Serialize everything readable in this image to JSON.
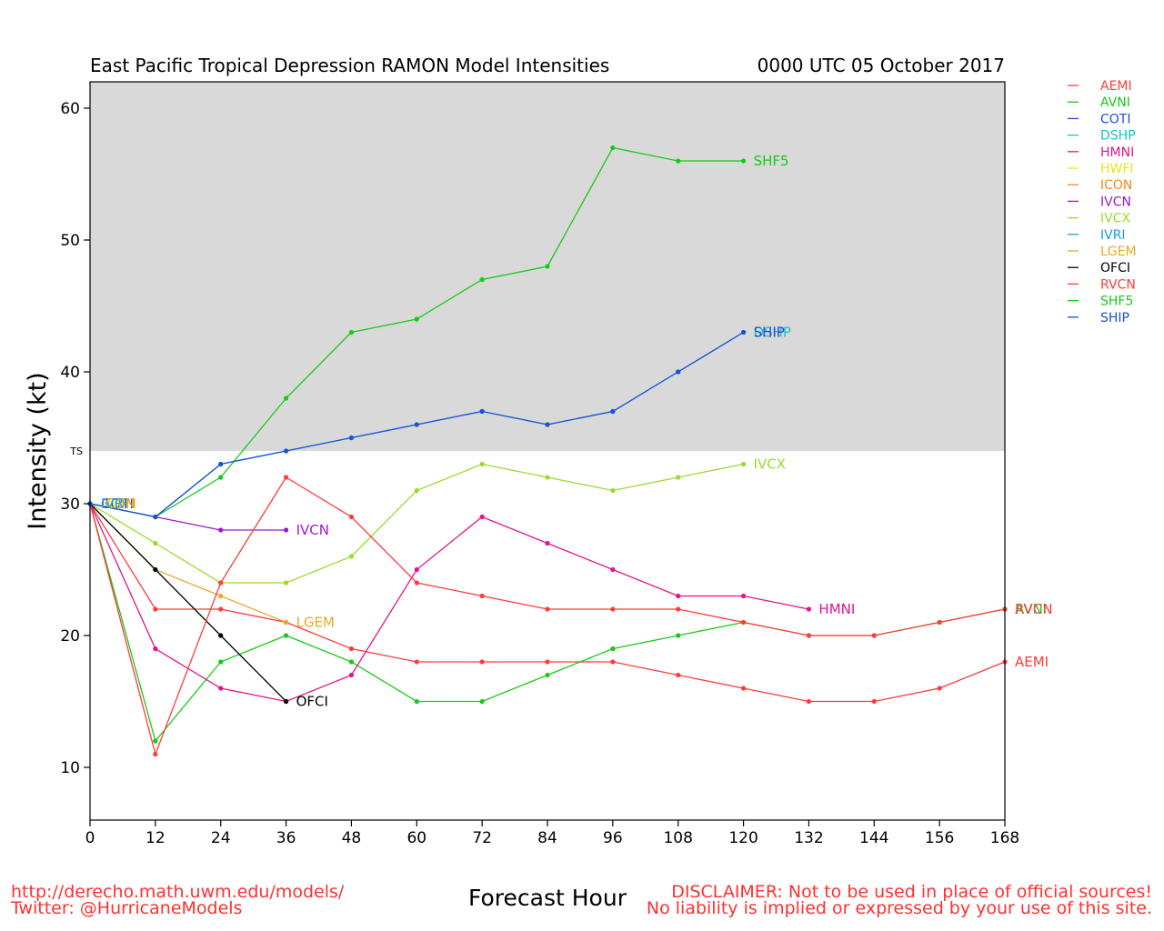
{
  "chart_data": {
    "type": "line",
    "title": "East Pacific Tropical Depression RAMON Model Intensities",
    "subtitle": "0000 UTC 05 October 2017",
    "xlabel": "Forecast Hour",
    "ylabel": "Intensity (kt)",
    "xlim": [
      0,
      168
    ],
    "ylim": [
      6,
      62
    ],
    "x_ticks": [
      0,
      12,
      24,
      36,
      48,
      60,
      72,
      84,
      96,
      108,
      120,
      132,
      144,
      156,
      168
    ],
    "y_ticks": [
      10,
      20,
      30,
      40,
      50,
      60
    ],
    "ts_threshold": 34,
    "ts_label": "TS",
    "shaded_above_ts_color": "#d9d9d9",
    "grid": false,
    "legend_position": "outside-right-top",
    "series": [
      {
        "name": "AEMI",
        "color": "#ff3b3b",
        "x": [
          0,
          12,
          24,
          36,
          48,
          60,
          72,
          84,
          96,
          108,
          120,
          132,
          144,
          156,
          168
        ],
        "values": [
          30,
          22,
          22,
          21,
          19,
          18,
          18,
          18,
          18,
          17,
          16,
          15,
          15,
          16,
          18
        ],
        "end_label": "AEMI"
      },
      {
        "name": "AVNI",
        "color": "#18c918",
        "x": [
          0,
          12,
          24,
          36,
          48,
          60,
          72,
          84,
          96,
          108,
          120,
          132,
          144,
          156,
          168
        ],
        "values": [
          30,
          12,
          18,
          20,
          18,
          15,
          15,
          17,
          19,
          20,
          21,
          20,
          20,
          21,
          22
        ],
        "end_label": "AVNI"
      },
      {
        "name": "COTI",
        "color": "#1d4fd9",
        "x": [
          0
        ],
        "values": [
          30
        ],
        "end_label": "COTI"
      },
      {
        "name": "DSHP",
        "color": "#19c1c1",
        "x": [
          0,
          12,
          24,
          36,
          48,
          60,
          72,
          84,
          96,
          108,
          120
        ],
        "values": [
          30,
          29,
          33,
          34,
          35,
          36,
          37,
          36,
          37,
          40,
          43
        ],
        "end_label": "DSHP"
      },
      {
        "name": "HMNI",
        "color": "#e0158a",
        "x": [
          0,
          12,
          24,
          36,
          48,
          60,
          72,
          84,
          96,
          108,
          120,
          132
        ],
        "values": [
          30,
          19,
          16,
          15,
          17,
          25,
          29,
          27,
          25,
          23,
          23,
          22
        ],
        "end_label": "HMNI"
      },
      {
        "name": "HWFI",
        "color": "#e6e619",
        "x": [
          0
        ],
        "values": [
          30
        ],
        "end_label": "HWFI"
      },
      {
        "name": "ICON",
        "color": "#f08a1e",
        "x": [
          0
        ],
        "values": [
          30
        ],
        "end_label": "ICON"
      },
      {
        "name": "IVCN",
        "color": "#9b1bc9",
        "x": [
          0,
          12,
          24,
          36
        ],
        "values": [
          30,
          29,
          28,
          28
        ],
        "end_label": "IVCN"
      },
      {
        "name": "IVCX",
        "color": "#9adb2a",
        "x": [
          0,
          12,
          24,
          36,
          48,
          60,
          72,
          84,
          96,
          108,
          120
        ],
        "values": [
          30,
          27,
          24,
          24,
          26,
          31,
          33,
          32,
          31,
          32,
          33
        ],
        "end_label": "IVCX"
      },
      {
        "name": "IVRI",
        "color": "#1b9be6",
        "x": [
          0
        ],
        "values": [
          30
        ],
        "end_label": "IVRI"
      },
      {
        "name": "LGEM",
        "color": "#e6a82a",
        "x": [
          0,
          12,
          24,
          36
        ],
        "values": [
          30,
          25,
          23,
          21
        ],
        "end_label": "LGEM"
      },
      {
        "name": "OFCI",
        "color": "#000000",
        "x": [
          0,
          12,
          24,
          36
        ],
        "values": [
          30,
          25,
          20,
          15
        ],
        "end_label": "OFCI"
      },
      {
        "name": "RVCN",
        "color": "#ff3b3b",
        "x": [
          0,
          12,
          24,
          36,
          48,
          60,
          72,
          84,
          96,
          108,
          120,
          132,
          144,
          156,
          168
        ],
        "values": [
          30,
          11,
          24,
          32,
          29,
          24,
          23,
          22,
          22,
          22,
          21,
          20,
          20,
          21,
          22
        ],
        "end_label": "RVCN"
      },
      {
        "name": "SHF5",
        "color": "#18c918",
        "x": [
          0,
          12,
          24,
          36,
          48,
          60,
          72,
          84,
          96,
          108,
          120
        ],
        "values": [
          30,
          29,
          32,
          38,
          43,
          44,
          47,
          48,
          57,
          56,
          56
        ],
        "end_label": "SHF5"
      },
      {
        "name": "SHIP",
        "color": "#1d4fd9",
        "x": [
          0,
          12,
          24,
          36,
          48,
          60,
          72,
          84,
          96,
          108,
          120
        ],
        "values": [
          30,
          29,
          33,
          34,
          35,
          36,
          37,
          36,
          37,
          40,
          43
        ],
        "end_label": "SHIP"
      }
    ]
  },
  "footer": {
    "url": "http://derecho.math.uwm.edu/models/",
    "twitter": "Twitter: @HurricaneModels",
    "disclaimer_line1": "DISCLAIMER: Not to be used in place of official sources!",
    "disclaimer_line2": "No liability is implied or expressed by your use of this site."
  }
}
